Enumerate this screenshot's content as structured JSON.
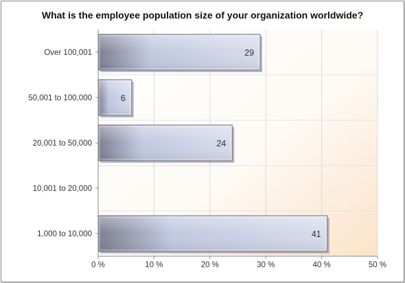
{
  "chart_data": {
    "type": "bar",
    "orientation": "horizontal",
    "title": "What is the employee population size of your organization worldwide?",
    "categories": [
      "Over 100,001",
      "50,001 to 100,000",
      "20,001 to 50,000",
      "10,001 to 20,000",
      "1,000 to 10,000"
    ],
    "values": [
      29,
      6,
      24,
      0,
      41
    ],
    "value_labels": [
      "29",
      "6",
      "24",
      "",
      "41"
    ],
    "xlim": [
      0,
      50
    ],
    "xticks": [
      0,
      10,
      20,
      30,
      40,
      50
    ],
    "xtick_labels": [
      "0 %",
      "10 %",
      "20 %",
      "30 %",
      "40 %",
      "50 %"
    ],
    "grid": true,
    "bar_color": "#c2c9e0",
    "bar_shadow_color": "#7f8294",
    "background_gradient": [
      "#ffffff",
      "#fbe3c8"
    ]
  }
}
